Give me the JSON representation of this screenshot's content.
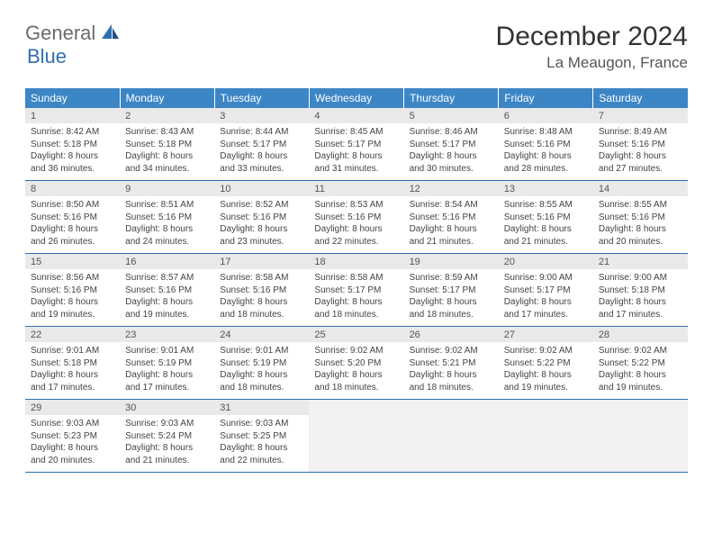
{
  "brand": {
    "part1": "General",
    "part2": "Blue"
  },
  "title": "December 2024",
  "location": "La Meaugon, France",
  "colors": {
    "header_bg": "#3d86c6",
    "header_text": "#ffffff",
    "daynum_bg": "#e9e9e9",
    "rule": "#2f6fb0",
    "logo_gray": "#6b6b6b",
    "logo_blue": "#2f6fb0"
  },
  "weekdays": [
    "Sunday",
    "Monday",
    "Tuesday",
    "Wednesday",
    "Thursday",
    "Friday",
    "Saturday"
  ],
  "weeks": [
    [
      {
        "n": "1",
        "sr": "Sunrise: 8:42 AM",
        "ss": "Sunset: 5:18 PM",
        "d1": "Daylight: 8 hours",
        "d2": "and 36 minutes."
      },
      {
        "n": "2",
        "sr": "Sunrise: 8:43 AM",
        "ss": "Sunset: 5:18 PM",
        "d1": "Daylight: 8 hours",
        "d2": "and 34 minutes."
      },
      {
        "n": "3",
        "sr": "Sunrise: 8:44 AM",
        "ss": "Sunset: 5:17 PM",
        "d1": "Daylight: 8 hours",
        "d2": "and 33 minutes."
      },
      {
        "n": "4",
        "sr": "Sunrise: 8:45 AM",
        "ss": "Sunset: 5:17 PM",
        "d1": "Daylight: 8 hours",
        "d2": "and 31 minutes."
      },
      {
        "n": "5",
        "sr": "Sunrise: 8:46 AM",
        "ss": "Sunset: 5:17 PM",
        "d1": "Daylight: 8 hours",
        "d2": "and 30 minutes."
      },
      {
        "n": "6",
        "sr": "Sunrise: 8:48 AM",
        "ss": "Sunset: 5:16 PM",
        "d1": "Daylight: 8 hours",
        "d2": "and 28 minutes."
      },
      {
        "n": "7",
        "sr": "Sunrise: 8:49 AM",
        "ss": "Sunset: 5:16 PM",
        "d1": "Daylight: 8 hours",
        "d2": "and 27 minutes."
      }
    ],
    [
      {
        "n": "8",
        "sr": "Sunrise: 8:50 AM",
        "ss": "Sunset: 5:16 PM",
        "d1": "Daylight: 8 hours",
        "d2": "and 26 minutes."
      },
      {
        "n": "9",
        "sr": "Sunrise: 8:51 AM",
        "ss": "Sunset: 5:16 PM",
        "d1": "Daylight: 8 hours",
        "d2": "and 24 minutes."
      },
      {
        "n": "10",
        "sr": "Sunrise: 8:52 AM",
        "ss": "Sunset: 5:16 PM",
        "d1": "Daylight: 8 hours",
        "d2": "and 23 minutes."
      },
      {
        "n": "11",
        "sr": "Sunrise: 8:53 AM",
        "ss": "Sunset: 5:16 PM",
        "d1": "Daylight: 8 hours",
        "d2": "and 22 minutes."
      },
      {
        "n": "12",
        "sr": "Sunrise: 8:54 AM",
        "ss": "Sunset: 5:16 PM",
        "d1": "Daylight: 8 hours",
        "d2": "and 21 minutes."
      },
      {
        "n": "13",
        "sr": "Sunrise: 8:55 AM",
        "ss": "Sunset: 5:16 PM",
        "d1": "Daylight: 8 hours",
        "d2": "and 21 minutes."
      },
      {
        "n": "14",
        "sr": "Sunrise: 8:55 AM",
        "ss": "Sunset: 5:16 PM",
        "d1": "Daylight: 8 hours",
        "d2": "and 20 minutes."
      }
    ],
    [
      {
        "n": "15",
        "sr": "Sunrise: 8:56 AM",
        "ss": "Sunset: 5:16 PM",
        "d1": "Daylight: 8 hours",
        "d2": "and 19 minutes."
      },
      {
        "n": "16",
        "sr": "Sunrise: 8:57 AM",
        "ss": "Sunset: 5:16 PM",
        "d1": "Daylight: 8 hours",
        "d2": "and 19 minutes."
      },
      {
        "n": "17",
        "sr": "Sunrise: 8:58 AM",
        "ss": "Sunset: 5:16 PM",
        "d1": "Daylight: 8 hours",
        "d2": "and 18 minutes."
      },
      {
        "n": "18",
        "sr": "Sunrise: 8:58 AM",
        "ss": "Sunset: 5:17 PM",
        "d1": "Daylight: 8 hours",
        "d2": "and 18 minutes."
      },
      {
        "n": "19",
        "sr": "Sunrise: 8:59 AM",
        "ss": "Sunset: 5:17 PM",
        "d1": "Daylight: 8 hours",
        "d2": "and 18 minutes."
      },
      {
        "n": "20",
        "sr": "Sunrise: 9:00 AM",
        "ss": "Sunset: 5:17 PM",
        "d1": "Daylight: 8 hours",
        "d2": "and 17 minutes."
      },
      {
        "n": "21",
        "sr": "Sunrise: 9:00 AM",
        "ss": "Sunset: 5:18 PM",
        "d1": "Daylight: 8 hours",
        "d2": "and 17 minutes."
      }
    ],
    [
      {
        "n": "22",
        "sr": "Sunrise: 9:01 AM",
        "ss": "Sunset: 5:18 PM",
        "d1": "Daylight: 8 hours",
        "d2": "and 17 minutes."
      },
      {
        "n": "23",
        "sr": "Sunrise: 9:01 AM",
        "ss": "Sunset: 5:19 PM",
        "d1": "Daylight: 8 hours",
        "d2": "and 17 minutes."
      },
      {
        "n": "24",
        "sr": "Sunrise: 9:01 AM",
        "ss": "Sunset: 5:19 PM",
        "d1": "Daylight: 8 hours",
        "d2": "and 18 minutes."
      },
      {
        "n": "25",
        "sr": "Sunrise: 9:02 AM",
        "ss": "Sunset: 5:20 PM",
        "d1": "Daylight: 8 hours",
        "d2": "and 18 minutes."
      },
      {
        "n": "26",
        "sr": "Sunrise: 9:02 AM",
        "ss": "Sunset: 5:21 PM",
        "d1": "Daylight: 8 hours",
        "d2": "and 18 minutes."
      },
      {
        "n": "27",
        "sr": "Sunrise: 9:02 AM",
        "ss": "Sunset: 5:22 PM",
        "d1": "Daylight: 8 hours",
        "d2": "and 19 minutes."
      },
      {
        "n": "28",
        "sr": "Sunrise: 9:02 AM",
        "ss": "Sunset: 5:22 PM",
        "d1": "Daylight: 8 hours",
        "d2": "and 19 minutes."
      }
    ],
    [
      {
        "n": "29",
        "sr": "Sunrise: 9:03 AM",
        "ss": "Sunset: 5:23 PM",
        "d1": "Daylight: 8 hours",
        "d2": "and 20 minutes."
      },
      {
        "n": "30",
        "sr": "Sunrise: 9:03 AM",
        "ss": "Sunset: 5:24 PM",
        "d1": "Daylight: 8 hours",
        "d2": "and 21 minutes."
      },
      {
        "n": "31",
        "sr": "Sunrise: 9:03 AM",
        "ss": "Sunset: 5:25 PM",
        "d1": "Daylight: 8 hours",
        "d2": "and 22 minutes."
      },
      null,
      null,
      null,
      null
    ]
  ]
}
